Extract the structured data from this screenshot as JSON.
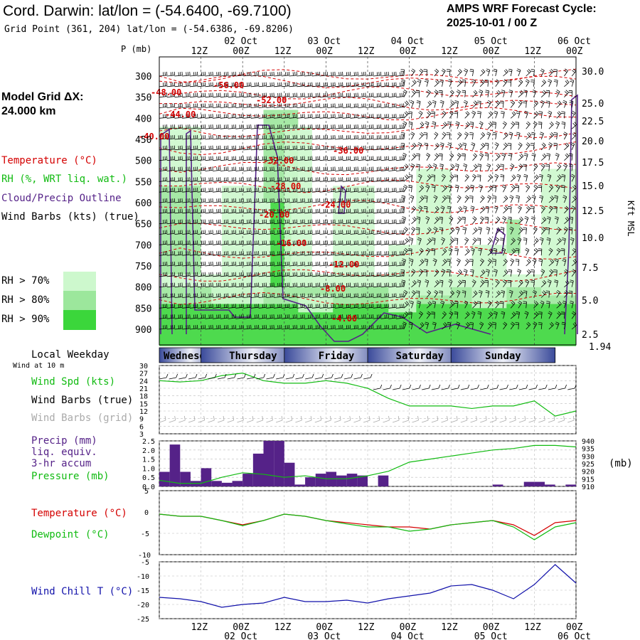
{
  "header": {
    "title": "Cord. Darwin:  lat/lon = (-54.6400, -69.7100)",
    "subtitle": "Grid Point (361, 204) lat/lon = (-54.6386, -69.8206)",
    "cycle_line1": "AMPS WRF Forecast Cycle:",
    "cycle_line2": "2025-10-01 / 00  Z"
  },
  "side": {
    "model_grid_line1": "Model Grid ΔX:",
    "model_grid_line2": " 24.000 km",
    "temp_label": "Temperature (°C)",
    "rh_label": "RH (%, WRT liq. wat.)",
    "cloud_label": "Cloud/Precip Outline",
    "wind_label": "Wind Barbs (kts) (true)",
    "rh_legend": [
      "RH > 70%",
      "RH > 80%",
      "RH > 90%"
    ],
    "rh_colors": [
      "#cdf8cd",
      "#9ce79c",
      "#3bd63b"
    ],
    "p_label": "P (mb)",
    "kft_label": "Kft MSL",
    "local_weekday": "Local Weekday",
    "wind_at": "Wind at 10 m",
    "wind_spd": "Wind Spd (kts)",
    "wind_barbs_true": "Wind Barbs (true)",
    "wind_barbs_grid": "Wind Barbs (grid)",
    "precip1": "Precip (mm)",
    "precip2": "liq. equiv.",
    "precip3": "3-hr accum",
    "pressure": "Pressure (mb)",
    "press_unit": "(mb)",
    "temperature": "Temperature (°C)",
    "dewpoint": "Dewpoint (°C)",
    "windchill": "Wind Chill T (°C)"
  },
  "colors": {
    "temp": "#d40000",
    "green": "#11bb11",
    "purple": "#552288",
    "blue": "#1111aa",
    "gray": "#aaaaaa"
  },
  "time_axis": {
    "top_hours": [
      "12Z",
      "00Z",
      "12Z",
      "00Z",
      "12Z",
      "00Z",
      "12Z",
      "00Z",
      "12Z",
      "00Z"
    ],
    "top_dates": [
      "02 Oct",
      "03 Oct",
      "04 Oct",
      "05 Oct",
      "06 Oct"
    ],
    "weekdays": [
      "Wednesday",
      "Thursday",
      "Friday",
      "Saturday",
      "Sunday"
    ]
  },
  "chart_data": [
    {
      "type": "contour",
      "name": "time-height cross section",
      "y_pressure_ticks": [
        300,
        350,
        400,
        450,
        500,
        550,
        600,
        650,
        700,
        750,
        800,
        850,
        900
      ],
      "y_height_ticks": [
        "30.0",
        "25.0",
        "22.5",
        "20.0",
        "17.5",
        "15.0",
        "12.5",
        "10.0",
        "7.5",
        "5.0",
        "2.5",
        "1.94"
      ],
      "temperature_contour_labels": [
        "-56.00",
        "-52.00",
        "-48.00",
        "-44.00",
        "-40.00",
        "-36.00",
        "-32.00",
        "-28.00",
        "-24.00",
        "-20.00",
        "-16.00",
        "-12.00",
        "-8.00",
        "-4.00"
      ]
    },
    {
      "type": "line",
      "name": "wind speed",
      "ylim": [
        3,
        30
      ],
      "y_ticks": [
        3,
        6,
        9,
        12,
        15,
        18,
        21,
        24,
        27,
        30
      ],
      "x_hours": [
        0,
        6,
        12,
        18,
        24,
        30,
        36,
        42,
        48,
        54,
        60,
        66,
        72,
        78,
        84,
        90,
        96,
        102,
        108,
        114,
        120
      ],
      "values": [
        24,
        23.5,
        24,
        26,
        27,
        24,
        23,
        23,
        24,
        23,
        21,
        17,
        14,
        14,
        14,
        13,
        14,
        14,
        16,
        10,
        12
      ]
    },
    {
      "type": "bar+line",
      "name": "precip and pressure",
      "precip_ylim": [
        0,
        2.5
      ],
      "precip_ticks": [
        "0.0",
        "0.5",
        "1.0",
        "1.5",
        "2.0",
        "2.5"
      ],
      "precip_x_hours": [
        0,
        3,
        6,
        9,
        12,
        15,
        18,
        21,
        24,
        27,
        30,
        33,
        36,
        39,
        42,
        45,
        48,
        51,
        54,
        57,
        60,
        63,
        66,
        69,
        72,
        75,
        78,
        81,
        84,
        87,
        90,
        93,
        96,
        99,
        102,
        105,
        108,
        111,
        114,
        117
      ],
      "precip_values": [
        0.8,
        2.3,
        0.8,
        0.3,
        1.0,
        0.3,
        0.2,
        0.3,
        0.7,
        1.8,
        2.5,
        2.5,
        1.3,
        0.1,
        0.5,
        0.7,
        0.8,
        0.6,
        0.7,
        0.6,
        0,
        0.6,
        0,
        0,
        0,
        0,
        0,
        0,
        0,
        0,
        0,
        0,
        0.1,
        0,
        0,
        0.25,
        0.25,
        0.1,
        0,
        0.1
      ],
      "pressure_ylim": [
        910,
        940
      ],
      "pressure_ticks": [
        910,
        915,
        920,
        925,
        930,
        935,
        940
      ],
      "pressure_x_hours": [
        0,
        6,
        12,
        18,
        24,
        30,
        36,
        42,
        48,
        54,
        60,
        66,
        72,
        78,
        84,
        90,
        96,
        102,
        108,
        114,
        120
      ],
      "pressure_values": [
        914,
        912,
        912,
        916,
        919,
        918,
        916,
        917,
        915,
        915,
        917,
        920,
        926,
        928,
        930,
        932,
        934,
        935,
        937,
        937,
        936
      ]
    },
    {
      "type": "line",
      "name": "temperature and dewpoint",
      "ylim": [
        -10,
        5
      ],
      "y_ticks": [
        5,
        0,
        -5,
        -10
      ],
      "x_hours": [
        0,
        6,
        12,
        18,
        24,
        30,
        36,
        42,
        48,
        54,
        60,
        66,
        72,
        78,
        84,
        90,
        96,
        102,
        108,
        114,
        120
      ],
      "series": [
        {
          "name": "Temperature",
          "values": [
            -0.5,
            -1,
            -1,
            -2,
            -3,
            -2,
            -0.5,
            -1,
            -2,
            -2.5,
            -3,
            -3.5,
            -3.5,
            -4,
            -3,
            -2.5,
            -2,
            -3,
            -5.5,
            -2.5,
            -2
          ]
        },
        {
          "name": "Dewpoint",
          "values": [
            -0.5,
            -1,
            -1,
            -2,
            -3.2,
            -2,
            -0.5,
            -1,
            -2,
            -2.8,
            -3.5,
            -3.5,
            -4.5,
            -4,
            -3,
            -2.5,
            -2,
            -3.5,
            -6.5,
            -3.5,
            -2.5
          ]
        }
      ]
    },
    {
      "type": "line",
      "name": "wind chill",
      "ylim": [
        -25,
        -5
      ],
      "y_ticks": [
        -5,
        -10,
        -15,
        -20,
        -25
      ],
      "x_hours": [
        0,
        6,
        12,
        18,
        24,
        30,
        36,
        42,
        48,
        54,
        60,
        66,
        72,
        78,
        84,
        90,
        96,
        102,
        108,
        114,
        120
      ],
      "values": [
        -17.5,
        -18,
        -19,
        -21,
        -20,
        -19.5,
        -17.5,
        -19,
        -19,
        -18.5,
        -19.5,
        -18,
        -17,
        -16,
        -13.5,
        -13,
        -15,
        -18,
        -13,
        -6,
        -12.5
      ]
    }
  ]
}
